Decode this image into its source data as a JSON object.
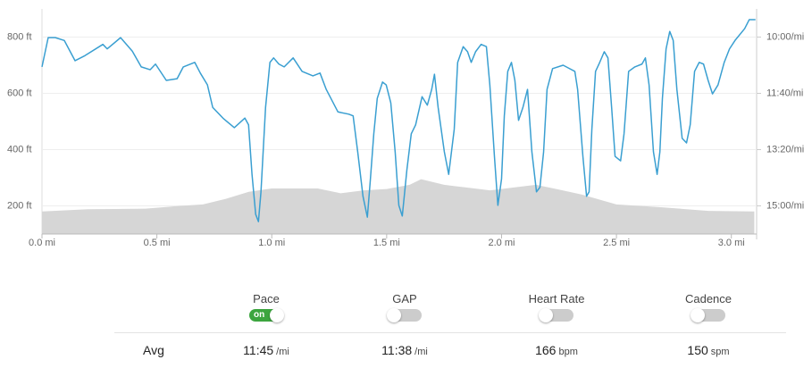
{
  "chart_data": {
    "type": "line",
    "xlim": [
      0,
      3.11
    ],
    "xticks": [
      {
        "value": 0,
        "label": "0.0 mi"
      },
      {
        "value": 0.5,
        "label": "0.5 mi"
      },
      {
        "value": 1,
        "label": "1.0 mi"
      },
      {
        "value": 1.5,
        "label": "1.5 mi"
      },
      {
        "value": 2,
        "label": "2.0 mi"
      },
      {
        "value": 2.5,
        "label": "2.5 mi"
      },
      {
        "value": 3,
        "label": "3.0 mi"
      }
    ],
    "ylim": [
      100,
      900
    ],
    "yticks": [
      {
        "value": 200,
        "label": "200 ft"
      },
      {
        "value": 400,
        "label": "400 ft"
      },
      {
        "value": 600,
        "label": "600 ft"
      },
      {
        "value": 800,
        "label": "800 ft"
      }
    ],
    "y2lim": [
      950,
      550
    ],
    "y2ticks": [
      {
        "value": 600,
        "label": "10:00/mi"
      },
      {
        "value": 700,
        "label": "11:40/mi"
      },
      {
        "value": 800,
        "label": "13:20/mi"
      },
      {
        "value": 900,
        "label": "15:00/mi"
      }
    ],
    "grid": true,
    "series": [
      {
        "kind": "area",
        "color": "#d6d6d6",
        "x": [
          0,
          0.2,
          0.45,
          0.6,
          0.7,
          0.8,
          0.9,
          1.0,
          1.2,
          1.3,
          1.4,
          1.5,
          1.6,
          1.65,
          1.75,
          1.85,
          1.95,
          2.05,
          2.15,
          2.25,
          2.35,
          2.5,
          2.7,
          2.9,
          3.1
        ],
        "values": [
          180,
          188,
          190,
          200,
          205,
          225,
          250,
          262,
          262,
          245,
          255,
          260,
          275,
          295,
          275,
          265,
          255,
          265,
          275,
          258,
          240,
          205,
          195,
          182,
          180
        ]
      },
      {
        "kind": "line",
        "axis": "y2",
        "color": "#3a9fd1",
        "x": [
          0,
          0.027,
          0.058,
          0.097,
          0.144,
          0.187,
          0.265,
          0.284,
          0.342,
          0.393,
          0.432,
          0.471,
          0.494,
          0.541,
          0.588,
          0.615,
          0.665,
          0.689,
          0.72,
          0.743,
          0.79,
          0.837,
          0.883,
          0.899,
          0.914,
          0.93,
          0.942,
          0.953,
          0.973,
          0.992,
          1.008,
          1.031,
          1.054,
          1.093,
          1.132,
          1.179,
          1.21,
          1.237,
          1.288,
          1.335,
          1.354,
          1.374,
          1.397,
          1.416,
          1.428,
          1.444,
          1.459,
          1.482,
          1.498,
          1.518,
          1.537,
          1.553,
          1.568,
          1.588,
          1.607,
          1.626,
          1.654,
          1.677,
          1.696,
          1.708,
          1.724,
          1.751,
          1.77,
          1.794,
          1.809,
          1.833,
          1.852,
          1.868,
          1.887,
          1.911,
          1.934,
          1.949,
          1.969,
          1.984,
          2.0,
          2.012,
          2.027,
          2.043,
          2.058,
          2.074,
          2.093,
          2.113,
          2.132,
          2.152,
          2.167,
          2.183,
          2.198,
          2.222,
          2.268,
          2.319,
          2.331,
          2.354,
          2.37,
          2.381,
          2.393,
          2.409,
          2.424,
          2.447,
          2.463,
          2.479,
          2.494,
          2.518,
          2.533,
          2.553,
          2.58,
          2.611,
          2.626,
          2.642,
          2.661,
          2.677,
          2.689,
          2.7,
          2.716,
          2.732,
          2.747,
          2.763,
          2.786,
          2.805,
          2.821,
          2.84,
          2.86,
          2.879,
          2.899,
          2.918,
          2.942,
          2.969,
          2.992,
          3.016,
          3.058,
          3.078,
          3.105
        ],
        "values": [
          653,
          601,
          601,
          606,
          642,
          633,
          613,
          621,
          601,
          625,
          653,
          658,
          648,
          677,
          674,
          653,
          645,
          664,
          685,
          725,
          745,
          761,
          744,
          756,
          844,
          915,
          928,
          875,
          725,
          645,
          637,
          648,
          653,
          637,
          661,
          669,
          664,
          693,
          733,
          737,
          740,
          804,
          883,
          920,
          859,
          772,
          709,
          680,
          685,
          717,
          804,
          899,
          918,
          836,
          772,
          756,
          706,
          721,
          693,
          666,
          725,
          804,
          844,
          764,
          645,
          617,
          626,
          645,
          626,
          613,
          617,
          685,
          812,
          899,
          852,
          740,
          661,
          645,
          677,
          748,
          725,
          693,
          804,
          875,
          867,
          804,
          693,
          656,
          650,
          661,
          693,
          812,
          883,
          875,
          764,
          661,
          648,
          626,
          637,
          725,
          812,
          820,
          772,
          661,
          653,
          648,
          637,
          685,
          804,
          844,
          804,
          709,
          621,
          590,
          606,
          693,
          780,
          788,
          756,
          661,
          645,
          648,
          677,
          701,
          685,
          645,
          621,
          606,
          585,
          569,
          569
        ]
      }
    ]
  },
  "stats": {
    "avg_label": "Avg",
    "metrics": [
      {
        "label": "Pace",
        "toggle_on": true,
        "toggle_text": "on",
        "avg": "11:45",
        "unit": "/mi"
      },
      {
        "label": "GAP",
        "toggle_on": false,
        "avg": "11:38",
        "unit": "/mi"
      },
      {
        "label": "Heart Rate",
        "toggle_on": false,
        "avg": "166",
        "unit": "bpm"
      },
      {
        "label": "Cadence",
        "toggle_on": false,
        "avg": "150",
        "unit": "spm"
      }
    ]
  }
}
